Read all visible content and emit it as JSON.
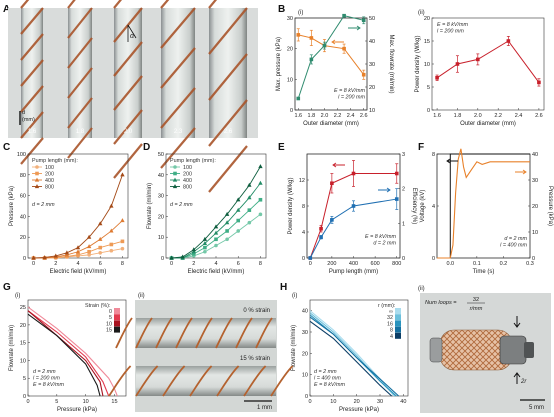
{
  "panels": {
    "A": {
      "letter": "A",
      "scale_label": "d\n(mm)",
      "diameters": [
        "1.6",
        "1.8",
        "2.0",
        "2.3",
        "2.6"
      ],
      "angle_symbol": "α"
    },
    "B": {
      "letter": "B"
    },
    "C": {
      "letter": "C"
    },
    "D": {
      "letter": "D"
    },
    "E": {
      "letter": "E"
    },
    "F": {
      "letter": "F"
    },
    "G": {
      "letter": "G",
      "sub_ii_label": "(ii)",
      "strain_top": "0 % strain",
      "strain_bottom": "15 % strain",
      "scale_bar": "1 mm"
    },
    "H": {
      "letter": "H",
      "sub_ii_label": "(ii)",
      "num_loops": "Num loops = ",
      "num_loops_frac_top": "32",
      "num_loops_frac_bottom": "r/mm",
      "arrow_label": "2r",
      "scale_bar": "5 mm"
    }
  },
  "colors": {
    "orange": "#E8812A",
    "teal": "#2E8B6E",
    "red": "#C8202B",
    "blue": "#1F6FB2",
    "orange_dark": "#B0561B"
  },
  "chart_data": [
    {
      "id": "B_i",
      "type": "line",
      "sub_label": "(i)",
      "xlabel": "Outer diameter (mm)",
      "x": [
        1.6,
        1.8,
        2.0,
        2.3,
        2.6
      ],
      "xticks": [
        "1.6",
        "1.8",
        "2.0",
        "2.2",
        "2.4",
        "2.6"
      ],
      "ylabel_left": "Max. pressure (kPa)",
      "ylim_left": [
        0,
        30
      ],
      "yticks_left": [
        "0",
        "10",
        "20",
        "30"
      ],
      "ylabel_right": "Max. flowrate (ml/min)",
      "ylim_right": [
        10,
        50
      ],
      "yticks_right": [
        "10",
        "20",
        "30",
        "40",
        "50"
      ],
      "series": [
        {
          "name": "Max. pressure (kPa)",
          "axis": "left",
          "values": [
            24.5,
            23.5,
            21.0,
            20.0,
            11.5
          ],
          "err": [
            2,
            2.5,
            2,
            1.5,
            1.5
          ]
        },
        {
          "name": "Max. flowrate (ml/min)",
          "axis": "right",
          "values": [
            15,
            32,
            38,
            51,
            49
          ],
          "err": [
            0.5,
            2,
            1.5,
            0.5,
            1.5
          ]
        }
      ],
      "annotations": [
        "E = 8 kV/mm",
        "l = 200 mm"
      ]
    },
    {
      "id": "B_ii",
      "type": "line",
      "sub_label": "(ii)",
      "xlabel": "Outer diameter (mm)",
      "x": [
        1.6,
        1.8,
        2.0,
        2.3,
        2.6
      ],
      "xticks": [
        "1.6",
        "1.8",
        "2.0",
        "2.2",
        "2.4",
        "2.6"
      ],
      "ylabel": "Power density (W/kg)",
      "ylim": [
        0,
        20
      ],
      "yticks": [
        "0",
        "5",
        "10",
        "15",
        "20"
      ],
      "series": [
        {
          "values": [
            7,
            10,
            11,
            15,
            6
          ],
          "err": [
            0.6,
            1.8,
            1.2,
            1.0,
            0.8
          ]
        }
      ],
      "annotations": [
        "E = 8 kV/mm",
        "l = 200 mm"
      ]
    },
    {
      "id": "C",
      "type": "line",
      "xlabel": "Electric field (kV/mm)",
      "ylabel": "Pressure (kPa)",
      "x": [
        0,
        1,
        2,
        3,
        4,
        5,
        6,
        7,
        8
      ],
      "xticks": [
        "0",
        "2",
        "4",
        "6",
        "8"
      ],
      "ylim": [
        0,
        100
      ],
      "yticks": [
        "0",
        "20",
        "40",
        "60",
        "80",
        "100"
      ],
      "legend_title": "Pump length (mm):",
      "series": [
        {
          "name": "100",
          "values": [
            0,
            0,
            0,
            1,
            2,
            3,
            5,
            7,
            9
          ]
        },
        {
          "name": "200",
          "values": [
            0,
            0,
            0.5,
            1.5,
            3,
            6,
            10,
            13,
            16
          ]
        },
        {
          "name": "400",
          "values": [
            0,
            0,
            1,
            3,
            6,
            11,
            18,
            26,
            36
          ]
        },
        {
          "name": "800",
          "values": [
            0,
            0.5,
            2,
            5,
            10,
            20,
            33,
            50,
            80
          ]
        }
      ],
      "annotations": [
        "d = 2 mm"
      ]
    },
    {
      "id": "D",
      "type": "line",
      "xlabel": "Electric field (kV/mm)",
      "ylabel": "Flowrate (ml/min)",
      "x": [
        0,
        1,
        2,
        3,
        4,
        5,
        6,
        7,
        8
      ],
      "xticks": [
        "0",
        "2",
        "4",
        "6",
        "8"
      ],
      "ylim": [
        0,
        50
      ],
      "yticks": [
        "0",
        "10",
        "20",
        "30",
        "40",
        "50"
      ],
      "legend_title": "Pump length (mm):",
      "series": [
        {
          "name": "100",
          "values": [
            0,
            0,
            1,
            3,
            6,
            9,
            13,
            17,
            21
          ]
        },
        {
          "name": "200",
          "values": [
            0,
            0,
            2,
            5,
            9,
            13,
            18,
            23,
            28
          ]
        },
        {
          "name": "400",
          "values": [
            0,
            0,
            3,
            7,
            12,
            17,
            23,
            29,
            36
          ]
        },
        {
          "name": "800",
          "values": [
            0,
            0.5,
            4,
            9,
            15,
            21,
            28,
            35,
            44
          ]
        }
      ],
      "annotations": [
        "d = 2 mm"
      ]
    },
    {
      "id": "E",
      "type": "line",
      "xlabel": "Pump length (mm)",
      "x": [
        0,
        100,
        200,
        400,
        800
      ],
      "xticks": [
        "0",
        "200",
        "400",
        "600",
        "800"
      ],
      "ylabel_left": "Power density (W/kg)",
      "ylim_left": [
        0,
        16
      ],
      "yticks_left": [
        "0",
        "4",
        "8",
        "12"
      ],
      "ylabel_right": "Efficiency (%)",
      "ylim_right": [
        0,
        3
      ],
      "yticks_right": [
        "0",
        "1",
        "2",
        "3"
      ],
      "series": [
        {
          "name": "Power density (W/kg)",
          "axis": "left",
          "values": [
            0,
            4.5,
            11.5,
            13,
            13
          ],
          "err": [
            0,
            0.5,
            1.5,
            2,
            1.5
          ]
        },
        {
          "name": "Efficiency (%)",
          "axis": "right",
          "values": [
            0,
            0.6,
            1.1,
            1.5,
            1.7
          ],
          "err": [
            0,
            0.05,
            0.1,
            0.15,
            0.3
          ]
        }
      ],
      "annotations": [
        "E = 8 kV/mm",
        "d = 2 mm"
      ]
    },
    {
      "id": "F",
      "type": "line",
      "xlabel": "Time (s)",
      "xlim": [
        -0.05,
        0.3
      ],
      "xticks": [
        "0.0",
        "0.1",
        "0.2",
        "0.3"
      ],
      "ylabel_left": "Voltage (kV)",
      "ylim_left": [
        0,
        8
      ],
      "yticks_left": [
        "0",
        "4",
        "8"
      ],
      "ylabel_right": "Pressure (kPa)",
      "ylim_right": [
        0,
        40
      ],
      "yticks_right": [
        "0",
        "10",
        "20",
        "30",
        "40"
      ],
      "series": [
        {
          "name": "Voltage (kV)",
          "axis": "left",
          "x": [
            -0.05,
            0.0,
            0.0,
            0.3
          ],
          "values": [
            0,
            0,
            8,
            8
          ]
        },
        {
          "name": "Pressure (kPa)",
          "axis": "right",
          "x": [
            -0.05,
            0.0,
            0.01,
            0.02,
            0.03,
            0.04,
            0.05,
            0.06,
            0.08,
            0.1,
            0.12,
            0.15,
            0.2,
            0.25,
            0.3
          ],
          "values": [
            0,
            0,
            5,
            25,
            38,
            42,
            35,
            31,
            34,
            37,
            36,
            37,
            37,
            37,
            37
          ]
        }
      ],
      "annotations": [
        "d = 2 mm",
        "l = 400 mm"
      ]
    },
    {
      "id": "G_i",
      "type": "line",
      "sub_label": "(i)",
      "xlabel": "Pressure (kPa)",
      "xlim": [
        0,
        17
      ],
      "xticks": [
        "0",
        "5",
        "10",
        "15"
      ],
      "ylabel": "Flowrate (ml/min)",
      "ylim": [
        0,
        27
      ],
      "yticks": [
        "0",
        "5",
        "10",
        "15",
        "20",
        "25"
      ],
      "legend_title": "Strain (%):",
      "series": [
        {
          "name": "0",
          "x": [
            0,
            5,
            10,
            14,
            15,
            15.5
          ],
          "values": [
            25,
            19,
            12,
            5,
            2,
            0
          ]
        },
        {
          "name": "5",
          "x": [
            0,
            5,
            10,
            13,
            14
          ],
          "values": [
            24,
            18,
            11,
            4,
            0
          ]
        },
        {
          "name": "10",
          "x": [
            0,
            5,
            10,
            12.5,
            13
          ],
          "values": [
            24,
            17,
            10,
            4,
            0
          ]
        },
        {
          "name": "15",
          "x": [
            0,
            5,
            10,
            12,
            12.5
          ],
          "values": [
            23,
            17,
            9,
            3,
            0
          ]
        }
      ],
      "annotations": [
        "d = 2 mm",
        "l = 200 mm",
        "E = 8 kV/mm"
      ]
    },
    {
      "id": "H_i",
      "type": "line",
      "sub_label": "(i)",
      "xlabel": "Pressure (kPa)",
      "xlim": [
        0,
        42
      ],
      "xticks": [
        "0",
        "10",
        "20",
        "30",
        "40"
      ],
      "ylabel": "Flowrate (ml/min)",
      "ylim": [
        0,
        45
      ],
      "yticks": [
        "0",
        "10",
        "20",
        "30",
        "40"
      ],
      "legend_title": "r (mm):",
      "series": [
        {
          "name": "∞",
          "x": [
            0,
            10,
            20,
            30,
            36
          ],
          "values": [
            40,
            31,
            20,
            8,
            0
          ]
        },
        {
          "name": "32",
          "x": [
            0,
            10,
            20,
            30,
            36.5
          ],
          "values": [
            39,
            30,
            19,
            7,
            0
          ]
        },
        {
          "name": "16",
          "x": [
            0,
            10,
            20,
            30,
            37
          ],
          "values": [
            38,
            29,
            18,
            7,
            0
          ]
        },
        {
          "name": "8",
          "x": [
            0,
            10,
            20,
            30,
            38
          ],
          "values": [
            37,
            29,
            18,
            8,
            0
          ]
        },
        {
          "name": "4",
          "x": [
            0,
            10,
            20,
            30,
            35
          ],
          "values": [
            35,
            27,
            16,
            5,
            0
          ]
        }
      ],
      "annotations": [
        "d = 2 mm",
        "l = 400 mm",
        "E = 8 kV/mm"
      ]
    }
  ]
}
